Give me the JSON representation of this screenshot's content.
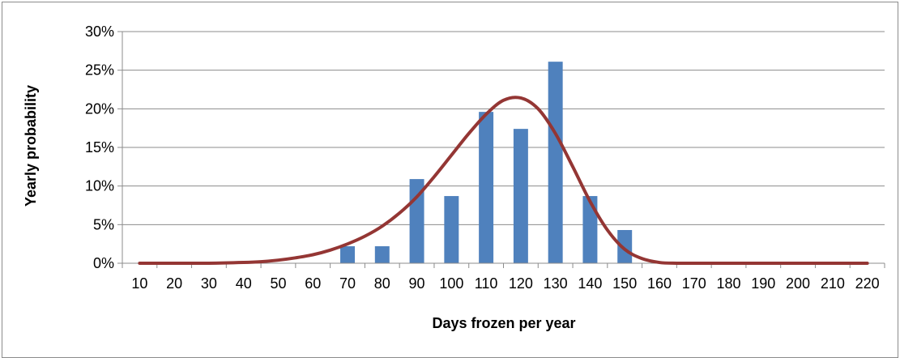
{
  "chart_data": {
    "type": "bar",
    "title": "",
    "xlabel": "Days frozen per year",
    "ylabel": "Yearly probability",
    "ylim": [
      0,
      0.3
    ],
    "ytick_values": [
      0,
      0.05,
      0.1,
      0.15,
      0.2,
      0.25,
      0.3
    ],
    "ytick_labels": [
      "0%",
      "5%",
      "10%",
      "15%",
      "20%",
      "25%",
      "30%"
    ],
    "grid": true,
    "legend": "none",
    "categories": [
      "10",
      "20",
      "30",
      "40",
      "50",
      "60",
      "70",
      "80",
      "90",
      "100",
      "110",
      "120",
      "130",
      "140",
      "150",
      "160",
      "170",
      "180",
      "190",
      "200",
      "210",
      "220"
    ],
    "series": [
      {
        "kind": "bar",
        "color": "#4f81bd",
        "values": [
          0,
          0,
          0,
          0,
          0,
          0,
          0.022,
          0.022,
          0.109,
          0.087,
          0.196,
          0.174,
          0.261,
          0.087,
          0.043,
          0,
          0,
          0,
          0,
          0,
          0,
          0
        ]
      },
      {
        "kind": "line",
        "color": "#943634",
        "smooth": true,
        "x": [
          10,
          20,
          30,
          40,
          45,
          50,
          55,
          60,
          65,
          70,
          75,
          80,
          85,
          90,
          95,
          100,
          105,
          110,
          115,
          120,
          125,
          130,
          135,
          140,
          145,
          150,
          155,
          160,
          165,
          170,
          180,
          190,
          200,
          210,
          220
        ],
        "values": [
          0.0,
          0.0,
          0.0,
          0.001,
          0.002,
          0.004,
          0.007,
          0.011,
          0.017,
          0.025,
          0.035,
          0.048,
          0.065,
          0.086,
          0.112,
          0.14,
          0.168,
          0.193,
          0.211,
          0.214,
          0.2,
          0.168,
          0.125,
          0.08,
          0.043,
          0.018,
          0.006,
          0.001,
          0.0,
          0.0,
          0.0,
          0.0,
          0.0,
          0.0,
          0.0
        ]
      }
    ]
  }
}
